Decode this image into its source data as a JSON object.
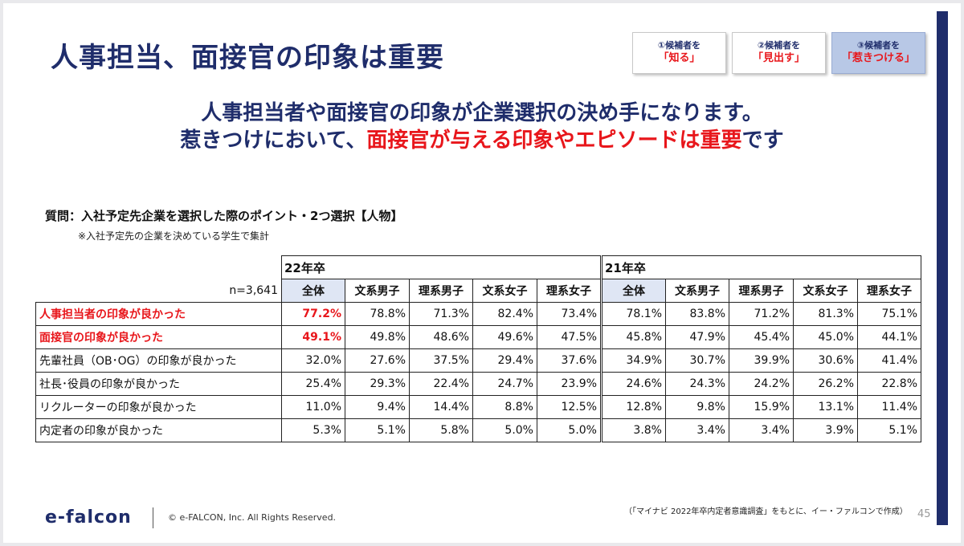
{
  "title": "人事担当、面接官の印象は重要",
  "steps": [
    {
      "line1": "①候補者を",
      "line2": "「知る」"
    },
    {
      "line1": "②候補者を",
      "line2": "「見出す」"
    },
    {
      "line1": "③候補者を",
      "line2": "「惹きつける」"
    }
  ],
  "headline": {
    "line1": "人事担当者や面接官の印象が企業選択の決め手になります。",
    "line2_prefix": "惹きつけにおいて、",
    "line2_red": "面接官が与える印象やエピソードは重要",
    "line2_suffix": "です"
  },
  "question": "質問：入社予定先企業を選択した際のポイント・2つ選択【人物】",
  "note": "※入社予定先の企業を決めている学生で集計",
  "table": {
    "n_label": "n=3,641",
    "groups": [
      "22年卒",
      "21年卒"
    ],
    "subheaders": [
      "全体",
      "文系男子",
      "理系男子",
      "文系女子",
      "理系女子"
    ],
    "rows": [
      {
        "label": "人事担当者の印象が良かった",
        "emphasis": true,
        "values": [
          "77.2%",
          "78.8%",
          "71.3%",
          "82.4%",
          "73.4%",
          "78.1%",
          "83.8%",
          "71.2%",
          "81.3%",
          "75.1%"
        ]
      },
      {
        "label": "面接官の印象が良かった",
        "emphasis": true,
        "values": [
          "49.1%",
          "49.8%",
          "48.6%",
          "49.6%",
          "47.5%",
          "45.8%",
          "47.9%",
          "45.4%",
          "45.0%",
          "44.1%"
        ]
      },
      {
        "label": "先輩社員（OB･OG）の印象が良かった",
        "emphasis": false,
        "values": [
          "32.0%",
          "27.6%",
          "37.5%",
          "29.4%",
          "37.6%",
          "34.9%",
          "30.7%",
          "39.9%",
          "30.6%",
          "41.4%"
        ]
      },
      {
        "label": "社長･役員の印象が良かった",
        "emphasis": false,
        "values": [
          "25.4%",
          "29.3%",
          "22.4%",
          "24.7%",
          "23.9%",
          "24.6%",
          "24.3%",
          "24.2%",
          "26.2%",
          "22.8%"
        ]
      },
      {
        "label": "リクルーターの印象が良かった",
        "emphasis": false,
        "values": [
          "11.0%",
          "9.4%",
          "14.4%",
          "8.8%",
          "12.5%",
          "12.8%",
          "9.8%",
          "15.9%",
          "13.1%",
          "11.4%"
        ]
      },
      {
        "label": "内定者の印象が良かった",
        "emphasis": false,
        "values": [
          "5.3%",
          "5.1%",
          "5.8%",
          "5.0%",
          "5.0%",
          "3.8%",
          "3.4%",
          "3.4%",
          "3.9%",
          "5.1%"
        ]
      }
    ]
  },
  "source": "（「マイナビ 2022年卒内定者意識調査」をもとに、イー・ファルコンで作成）",
  "brand": "e-falcon",
  "copyright": "© e-FALCON, Inc. All Rights Reserved.",
  "page_number": "45",
  "colors": {
    "navy": "#1f2d6b",
    "red": "#e8161b",
    "active_step": "#b8c8e6",
    "header_fill": "#dfe6f4"
  }
}
